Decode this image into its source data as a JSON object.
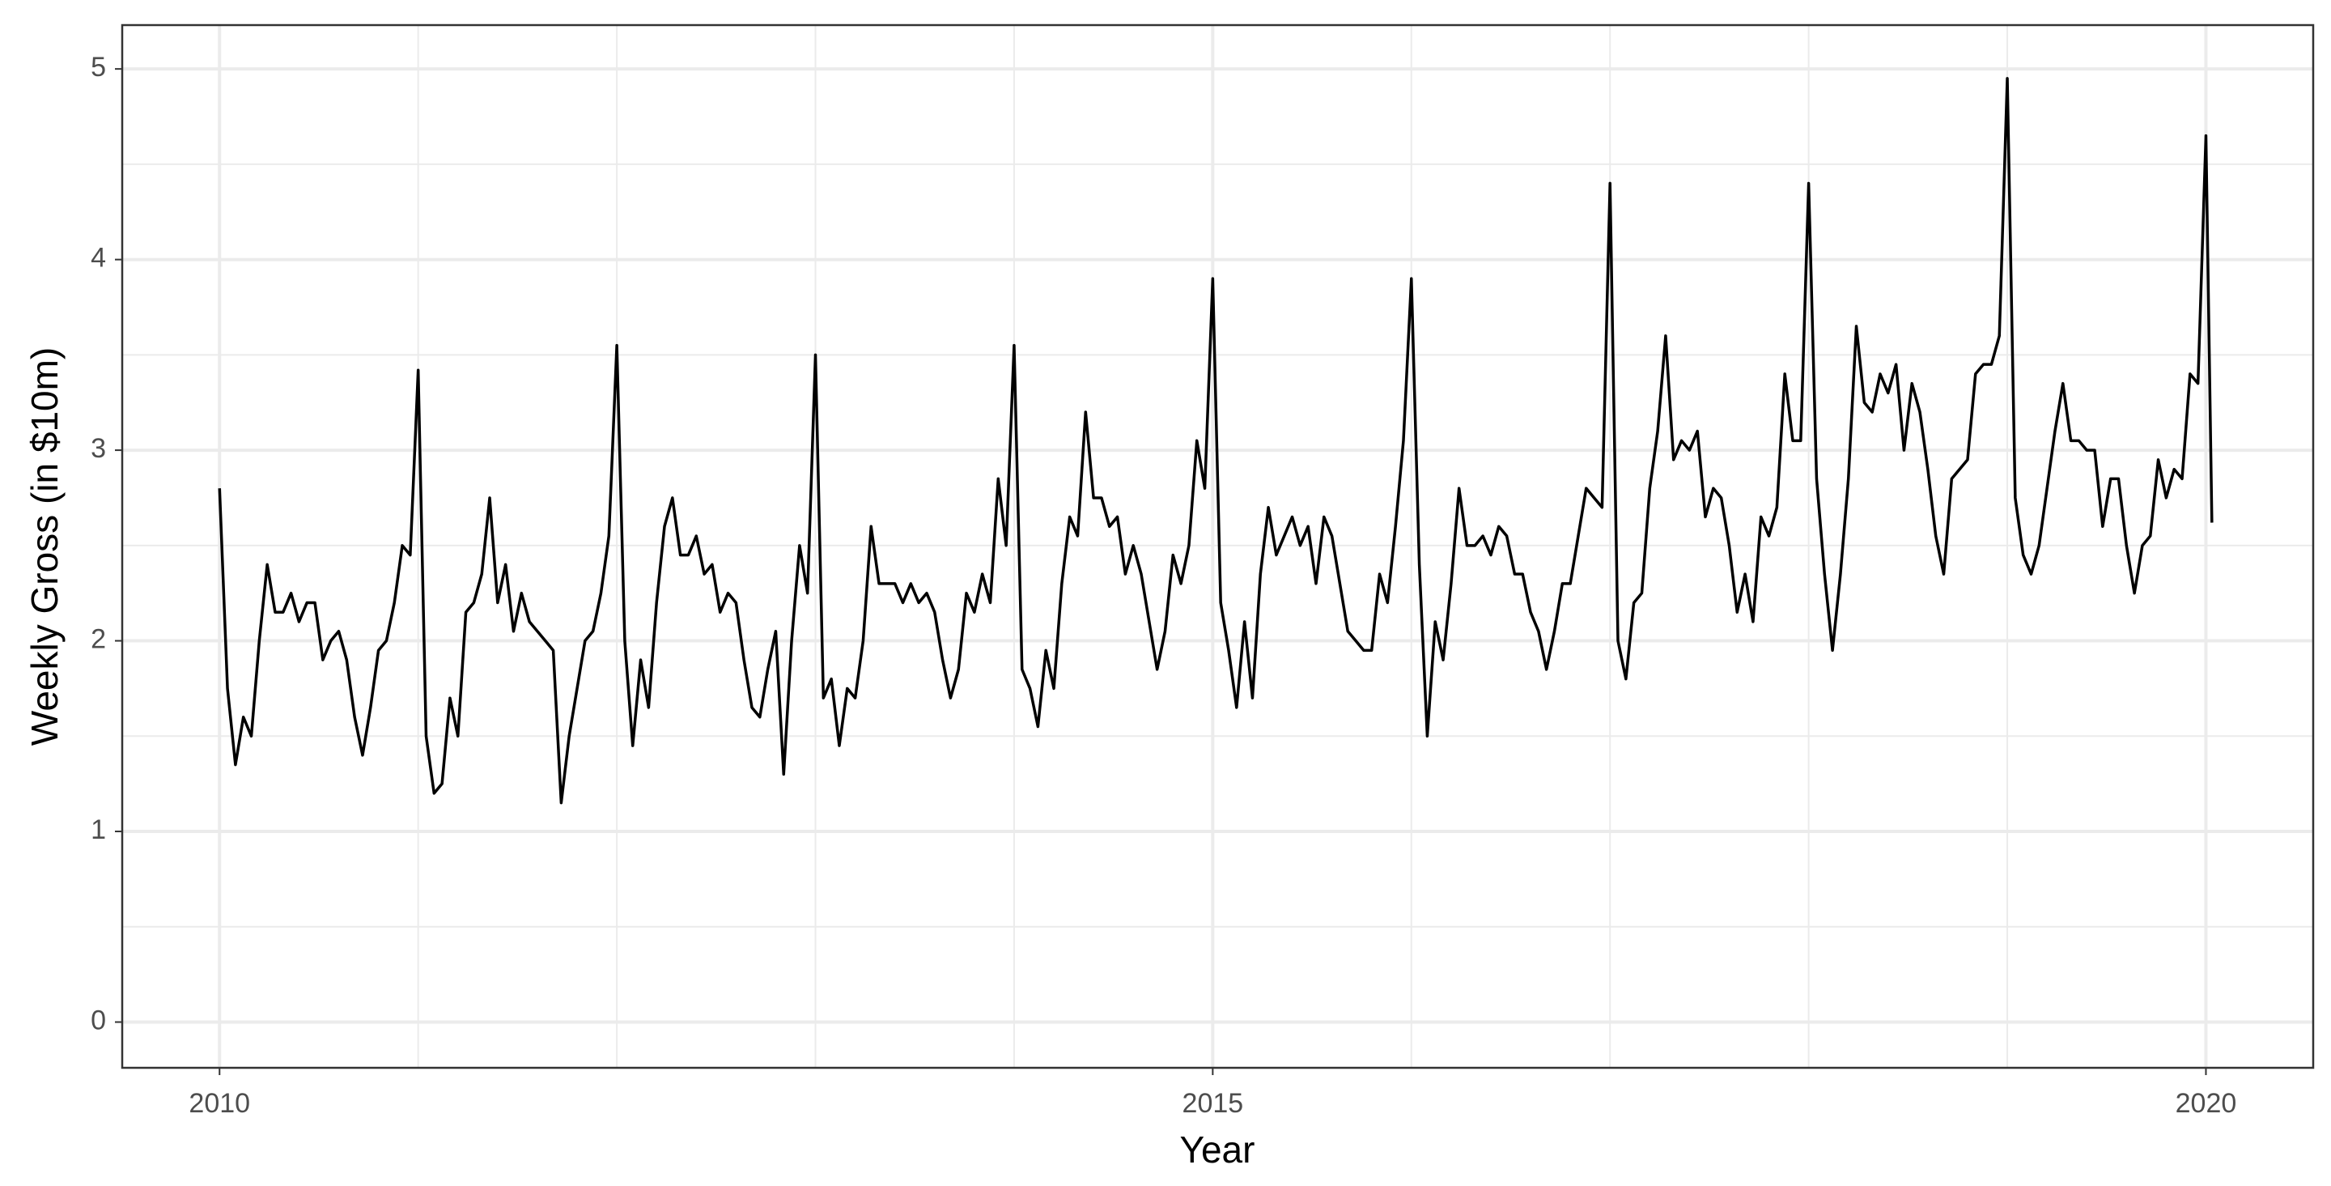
{
  "chart_data": {
    "type": "line",
    "x_label": "Year",
    "y_label": "Weekly Gross (in $10m)",
    "x": [
      2010,
      2010.04,
      2010.08,
      2010.12,
      2010.16,
      2010.2,
      2010.24,
      2010.28,
      2010.32,
      2010.36,
      2010.4,
      2010.44,
      2010.48,
      2010.52,
      2010.56,
      2010.6,
      2010.64,
      2010.68,
      2010.72,
      2010.76,
      2010.8,
      2010.84,
      2010.88,
      2010.92,
      2010.96,
      2011,
      2011.04,
      2011.08,
      2011.12,
      2011.16,
      2011.2,
      2011.24,
      2011.28,
      2011.32,
      2011.36,
      2011.4,
      2011.44,
      2011.48,
      2011.52,
      2011.56,
      2011.6,
      2011.64,
      2011.68,
      2011.72,
      2011.76,
      2011.8,
      2011.84,
      2011.88,
      2011.92,
      2011.96,
      2012,
      2012.04,
      2012.08,
      2012.12,
      2012.16,
      2012.2,
      2012.24,
      2012.28,
      2012.32,
      2012.36,
      2012.4,
      2012.44,
      2012.48,
      2012.52,
      2012.56,
      2012.6,
      2012.64,
      2012.68,
      2012.72,
      2012.76,
      2012.8,
      2012.84,
      2012.88,
      2012.92,
      2012.96,
      2013,
      2013.04,
      2013.08,
      2013.12,
      2013.16,
      2013.2,
      2013.24,
      2013.28,
      2013.32,
      2013.36,
      2013.4,
      2013.44,
      2013.48,
      2013.52,
      2013.56,
      2013.6,
      2013.64,
      2013.68,
      2013.72,
      2013.76,
      2013.8,
      2013.84,
      2013.88,
      2013.92,
      2013.96,
      2014,
      2014.04,
      2014.08,
      2014.12,
      2014.16,
      2014.2,
      2014.24,
      2014.28,
      2014.32,
      2014.36,
      2014.4,
      2014.44,
      2014.48,
      2014.52,
      2014.56,
      2014.6,
      2014.64,
      2014.68,
      2014.72,
      2014.76,
      2014.8,
      2014.84,
      2014.88,
      2014.92,
      2014.96,
      2015,
      2015.04,
      2015.08,
      2015.12,
      2015.16,
      2015.2,
      2015.24,
      2015.28,
      2015.32,
      2015.36,
      2015.4,
      2015.44,
      2015.48,
      2015.52,
      2015.56,
      2015.6,
      2015.64,
      2015.68,
      2015.72,
      2015.76,
      2015.8,
      2015.84,
      2015.88,
      2015.92,
      2015.96,
      2016,
      2016.04,
      2016.08,
      2016.12,
      2016.16,
      2016.2,
      2016.24,
      2016.28,
      2016.32,
      2016.36,
      2016.4,
      2016.44,
      2016.48,
      2016.52,
      2016.56,
      2016.6,
      2016.64,
      2016.68,
      2016.72,
      2016.76,
      2016.8,
      2016.84,
      2016.88,
      2016.92,
      2016.96,
      2017,
      2017.04,
      2017.08,
      2017.12,
      2017.16,
      2017.2,
      2017.24,
      2017.28,
      2017.32,
      2017.36,
      2017.4,
      2017.44,
      2017.48,
      2017.52,
      2017.56,
      2017.6,
      2017.64,
      2017.68,
      2017.72,
      2017.76,
      2017.8,
      2017.84,
      2017.88,
      2017.92,
      2017.96,
      2018,
      2018.04,
      2018.08,
      2018.12,
      2018.16,
      2018.2,
      2018.24,
      2018.28,
      2018.32,
      2018.36,
      2018.4,
      2018.44,
      2018.48,
      2018.52,
      2018.56,
      2018.6,
      2018.64,
      2018.68,
      2018.72,
      2018.76,
      2018.8,
      2018.84,
      2018.88,
      2018.92,
      2018.96,
      2019,
      2019.04,
      2019.08,
      2019.12,
      2019.16,
      2019.2,
      2019.24,
      2019.28,
      2019.32,
      2019.36,
      2019.4,
      2019.44,
      2019.48,
      2019.52,
      2019.56,
      2019.6,
      2019.64,
      2019.68,
      2019.72,
      2019.76,
      2019.8,
      2019.84,
      2019.88,
      2019.92,
      2019.96,
      2020,
      2020.03
    ],
    "values": [
      2.8,
      1.75,
      1.35,
      1.6,
      1.5,
      2.0,
      2.4,
      2.15,
      2.15,
      2.25,
      2.1,
      2.2,
      2.2,
      1.9,
      2.0,
      2.05,
      1.9,
      1.6,
      1.4,
      1.65,
      1.95,
      2.0,
      2.2,
      2.5,
      2.45,
      3.42,
      1.5,
      1.2,
      1.25,
      1.7,
      1.5,
      2.15,
      2.2,
      2.35,
      2.75,
      2.2,
      2.4,
      2.05,
      2.25,
      2.1,
      2.05,
      2.0,
      1.95,
      1.15,
      1.5,
      1.75,
      2.0,
      2.05,
      2.25,
      2.55,
      3.55,
      2.0,
      1.45,
      1.9,
      1.65,
      2.2,
      2.6,
      2.75,
      2.45,
      2.45,
      2.55,
      2.35,
      2.4,
      2.15,
      2.25,
      2.2,
      1.9,
      1.65,
      1.6,
      1.85,
      2.05,
      1.3,
      2.0,
      2.5,
      2.25,
      3.5,
      1.7,
      1.8,
      1.45,
      1.75,
      1.7,
      2.0,
      2.6,
      2.3,
      2.3,
      2.3,
      2.2,
      2.3,
      2.2,
      2.25,
      2.15,
      1.9,
      1.7,
      1.85,
      2.25,
      2.15,
      2.35,
      2.2,
      2.85,
      2.5,
      3.55,
      1.85,
      1.75,
      1.55,
      1.95,
      1.75,
      2.3,
      2.65,
      2.55,
      3.2,
      2.75,
      2.75,
      2.6,
      2.65,
      2.35,
      2.5,
      2.35,
      2.1,
      1.85,
      2.05,
      2.45,
      2.3,
      2.5,
      3.05,
      2.8,
      3.9,
      2.2,
      1.95,
      1.65,
      2.1,
      1.7,
      2.35,
      2.7,
      2.45,
      2.55,
      2.65,
      2.5,
      2.6,
      2.3,
      2.65,
      2.55,
      2.3,
      2.05,
      2.0,
      1.95,
      1.95,
      2.35,
      2.2,
      2.6,
      3.05,
      3.9,
      2.4,
      1.5,
      2.1,
      1.9,
      2.3,
      2.8,
      2.5,
      2.5,
      2.55,
      2.45,
      2.6,
      2.55,
      2.35,
      2.35,
      2.15,
      2.05,
      1.85,
      2.05,
      2.3,
      2.3,
      2.55,
      2.8,
      2.75,
      2.7,
      4.4,
      2.0,
      1.8,
      2.2,
      2.25,
      2.8,
      3.1,
      3.6,
      2.95,
      3.05,
      3.0,
      3.1,
      2.65,
      2.8,
      2.75,
      2.5,
      2.15,
      2.35,
      2.1,
      2.65,
      2.55,
      2.7,
      3.4,
      3.05,
      3.05,
      4.4,
      2.85,
      2.35,
      1.95,
      2.35,
      2.85,
      3.65,
      3.25,
      3.2,
      3.4,
      3.3,
      3.45,
      3.0,
      3.35,
      3.2,
      2.9,
      2.55,
      2.35,
      2.85,
      2.9,
      2.95,
      3.4,
      3.45,
      3.45,
      3.6,
      4.95,
      2.75,
      2.45,
      2.35,
      2.5,
      2.8,
      3.1,
      3.35,
      3.05,
      3.05,
      3.0,
      3.0,
      2.6,
      2.85,
      2.85,
      2.5,
      2.25,
      2.5,
      2.55,
      2.95,
      2.75,
      2.9,
      2.85,
      3.4,
      3.35,
      4.65,
      2.62
    ],
    "color": "#000000",
    "xlim": [
      2009.51,
      2020.54
    ],
    "ylim": [
      -0.24,
      5.23
    ],
    "xticks": [
      2010,
      2015,
      2020
    ],
    "yticks": [
      0,
      1,
      2,
      3,
      4,
      5
    ],
    "x_minor_grid": [
      2011,
      2012,
      2013,
      2014,
      2016,
      2017,
      2018,
      2019
    ],
    "y_minor_grid": [
      0.5,
      1.5,
      2.5,
      3.5,
      4.5
    ],
    "grid": true
  }
}
